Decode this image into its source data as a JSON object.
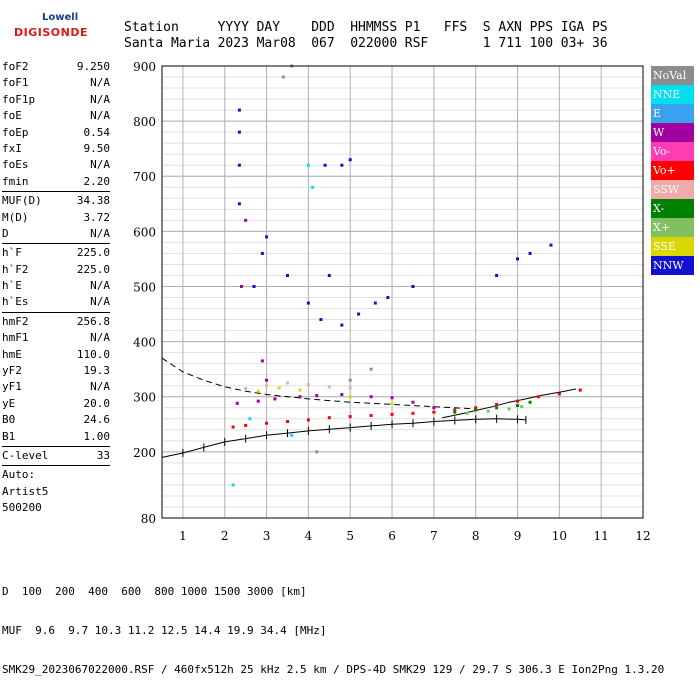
{
  "logo": {
    "line1": "Lowell",
    "line2": "DIGISONDE"
  },
  "header": {
    "row1": [
      "Station",
      "YYYY",
      "DAY",
      "DDD",
      "HHMMSS",
      "P1",
      "FFS",
      "S",
      "AXN",
      "PPS",
      "IGA",
      "PS"
    ],
    "row2": [
      "Santa Maria",
      "2023",
      "Mar08",
      "067",
      "022000",
      "RSF",
      "",
      "1",
      "711",
      "100",
      "03+",
      "36"
    ]
  },
  "scaled": [
    {
      "label": "foF2",
      "value": "9.250"
    },
    {
      "label": "foF1",
      "value": "N/A"
    },
    {
      "label": "foF1p",
      "value": "N/A"
    },
    {
      "label": "foE",
      "value": "N/A"
    },
    {
      "label": "foEp",
      "value": "0.54"
    },
    {
      "label": "fxI",
      "value": "9.50"
    },
    {
      "label": "foEs",
      "value": "N/A"
    },
    {
      "label": "fmin",
      "value": "2.20"
    },
    {
      "sep": true
    },
    {
      "label": "MUF(D)",
      "value": "34.38"
    },
    {
      "label": "M(D)",
      "value": "3.72"
    },
    {
      "label": "D",
      "value": "N/A"
    },
    {
      "sep": true
    },
    {
      "label": "h`F",
      "value": "225.0"
    },
    {
      "label": "h`F2",
      "value": "225.0"
    },
    {
      "label": "h`E",
      "value": "N/A"
    },
    {
      "label": "h`Es",
      "value": "N/A"
    },
    {
      "sep": true
    },
    {
      "label": "hmF2",
      "value": "256.8"
    },
    {
      "label": "hmF1",
      "value": "N/A"
    },
    {
      "label": "hmE",
      "value": "110.0"
    },
    {
      "label": "yF2",
      "value": "19.3"
    },
    {
      "label": "yF1",
      "value": "N/A"
    },
    {
      "label": "yE",
      "value": "20.0"
    },
    {
      "label": "B0",
      "value": "24.6"
    },
    {
      "label": "B1",
      "value": "1.00"
    },
    {
      "sep": true
    },
    {
      "label": "C-level",
      "value": "33"
    },
    {
      "sep": true
    },
    {
      "label": "Auto:",
      "value": ""
    },
    {
      "label": "Artist5",
      "value": ""
    },
    {
      "label": "500200",
      "value": ""
    }
  ],
  "legend": [
    {
      "name": "NoVal",
      "color": "#8c8c8c"
    },
    {
      "name": "NNE",
      "color": "#00e0f0"
    },
    {
      "name": "E",
      "color": "#3aa0f0"
    },
    {
      "name": "W",
      "color": "#a000a0"
    },
    {
      "name": "Vo-",
      "color": "#ff3cb4"
    },
    {
      "name": "Vo+",
      "color": "#ff0000"
    },
    {
      "name": "SSW",
      "color": "#f0aaaa"
    },
    {
      "name": "X-",
      "color": "#008000"
    },
    {
      "name": "X+",
      "color": "#80c060"
    },
    {
      "name": "SSE",
      "color": "#d8d800"
    },
    {
      "name": "NNW",
      "color": "#1010d0"
    }
  ],
  "footer": {
    "d_label": "D",
    "d_values": "100  200  400  600  800 1000 1500 3000 [km]",
    "muf_label": "MUF",
    "muf_values": "9.6  9.7 10.3 11.2 12.5 14.4 19.9 34.4 [MHz]",
    "info": "SMK29_2023067022000.RSF / 460fx512h 25 kHz 2.5 km / DPS-4D SMK29 129 / 29.7 S 306.3 E Ion2Png 1.3.20"
  },
  "chart_data": {
    "type": "scatter",
    "title": "",
    "xlabel": "",
    "ylabel": "",
    "xlim": [
      0.5,
      12
    ],
    "ylim": [
      80,
      900
    ],
    "x_ticks": [
      1,
      2,
      3,
      4,
      5,
      6,
      7,
      8,
      9,
      10,
      11,
      12
    ],
    "y_ticks": [
      80,
      200,
      300,
      400,
      500,
      600,
      700,
      800,
      900
    ],
    "grid": true,
    "legend_position": "right",
    "series": [
      {
        "name": "Vo+",
        "color": "#ff0000",
        "points": [
          [
            2.2,
            245
          ],
          [
            2.5,
            248
          ],
          [
            3.0,
            252
          ],
          [
            3.5,
            255
          ],
          [
            4.0,
            258
          ],
          [
            4.5,
            262
          ],
          [
            5.0,
            264
          ],
          [
            5.5,
            266
          ],
          [
            6.0,
            268
          ],
          [
            6.5,
            270
          ],
          [
            7.0,
            272
          ],
          [
            7.5,
            276
          ],
          [
            8.0,
            280
          ],
          [
            8.5,
            286
          ],
          [
            9.0,
            292
          ],
          [
            9.5,
            300
          ],
          [
            10.0,
            305
          ],
          [
            10.5,
            312
          ]
        ]
      },
      {
        "name": "W",
        "color": "#a000a0",
        "points": [
          [
            2.3,
            288
          ],
          [
            2.8,
            292
          ],
          [
            3.2,
            296
          ],
          [
            3.8,
            300
          ],
          [
            4.2,
            302
          ],
          [
            4.8,
            304
          ],
          [
            5.5,
            300
          ],
          [
            6.0,
            298
          ],
          [
            6.5,
            290
          ],
          [
            7.0,
            280
          ],
          [
            2.4,
            500
          ],
          [
            2.5,
            620
          ],
          [
            3.0,
            330
          ],
          [
            2.9,
            365
          ]
        ]
      },
      {
        "name": "X-",
        "color": "#008000",
        "points": [
          [
            7.5,
            272
          ],
          [
            8.0,
            276
          ],
          [
            8.5,
            280
          ],
          [
            9.0,
            284
          ],
          [
            9.3,
            290
          ]
        ]
      },
      {
        "name": "X+",
        "color": "#80c060",
        "points": [
          [
            7.8,
            270
          ],
          [
            8.3,
            274
          ],
          [
            8.8,
            278
          ],
          [
            9.1,
            282
          ]
        ]
      },
      {
        "name": "SSW",
        "color": "#f0aaaa",
        "points": [
          [
            2.5,
            315
          ],
          [
            3.0,
            320
          ],
          [
            3.5,
            325
          ],
          [
            4.0,
            322
          ],
          [
            4.5,
            318
          ],
          [
            5.0,
            316
          ]
        ]
      },
      {
        "name": "SSE",
        "color": "#d8d800",
        "points": [
          [
            2.8,
            310
          ],
          [
            3.3,
            316
          ],
          [
            3.8,
            312
          ],
          [
            5.0,
            300
          ],
          [
            6.0,
            288
          ]
        ]
      },
      {
        "name": "NNE",
        "color": "#00e0f0",
        "points": [
          [
            2.2,
            140
          ],
          [
            3.6,
            230
          ],
          [
            4.0,
            720
          ],
          [
            4.1,
            680
          ],
          [
            2.6,
            260
          ]
        ]
      },
      {
        "name": "NNW",
        "color": "#1010d0",
        "points": [
          [
            2.35,
            820
          ],
          [
            2.35,
            780
          ],
          [
            2.35,
            720
          ],
          [
            2.35,
            650
          ],
          [
            4.4,
            720
          ],
          [
            4.8,
            720
          ],
          [
            5.0,
            730
          ],
          [
            4.5,
            520
          ],
          [
            4.0,
            470
          ],
          [
            4.3,
            440
          ],
          [
            4.8,
            430
          ],
          [
            5.2,
            450
          ],
          [
            5.6,
            470
          ],
          [
            5.9,
            480
          ],
          [
            6.5,
            500
          ],
          [
            8.5,
            520
          ],
          [
            9.0,
            550
          ],
          [
            9.3,
            560
          ],
          [
            9.8,
            575
          ],
          [
            3.5,
            520
          ],
          [
            3.0,
            590
          ],
          [
            2.7,
            500
          ],
          [
            2.9,
            560
          ]
        ]
      },
      {
        "name": "NoVal",
        "color": "#8c8c8c",
        "points": [
          [
            3.4,
            880
          ],
          [
            3.6,
            900
          ],
          [
            4.2,
            200
          ],
          [
            5.0,
            330
          ],
          [
            5.5,
            350
          ]
        ]
      }
    ],
    "curves": [
      {
        "label": "virtual height trace (dashed)",
        "style": "dashed",
        "points": [
          [
            0.5,
            370
          ],
          [
            1.0,
            345
          ],
          [
            1.5,
            330
          ],
          [
            2.0,
            318
          ],
          [
            2.5,
            310
          ],
          [
            3.0,
            304
          ],
          [
            3.5,
            300
          ],
          [
            4.0,
            296
          ],
          [
            4.5,
            293
          ],
          [
            5.0,
            290
          ],
          [
            5.5,
            288
          ],
          [
            6.0,
            286
          ],
          [
            6.5,
            284
          ],
          [
            7.0,
            282
          ],
          [
            7.5,
            280
          ],
          [
            8.0,
            278
          ]
        ]
      },
      {
        "label": "true height profile",
        "style": "solid",
        "points": [
          [
            0.5,
            190
          ],
          [
            1.0,
            198
          ],
          [
            1.5,
            208
          ],
          [
            2.0,
            218
          ],
          [
            2.5,
            224
          ],
          [
            3.0,
            230
          ],
          [
            3.5,
            234
          ],
          [
            4.0,
            238
          ],
          [
            4.5,
            241
          ],
          [
            5.0,
            244
          ],
          [
            5.5,
            247
          ],
          [
            6.0,
            250
          ],
          [
            6.5,
            252
          ],
          [
            7.0,
            255
          ],
          [
            7.5,
            257
          ],
          [
            8.0,
            259
          ],
          [
            8.5,
            260
          ],
          [
            9.0,
            259
          ],
          [
            9.2,
            258
          ]
        ]
      },
      {
        "label": "model trace",
        "style": "solid",
        "points": [
          [
            7.2,
            262
          ],
          [
            7.6,
            268
          ],
          [
            8.0,
            275
          ],
          [
            8.4,
            282
          ],
          [
            8.8,
            290
          ],
          [
            9.2,
            296
          ],
          [
            9.6,
            303
          ],
          [
            10.0,
            308
          ],
          [
            10.4,
            314
          ]
        ]
      }
    ]
  }
}
